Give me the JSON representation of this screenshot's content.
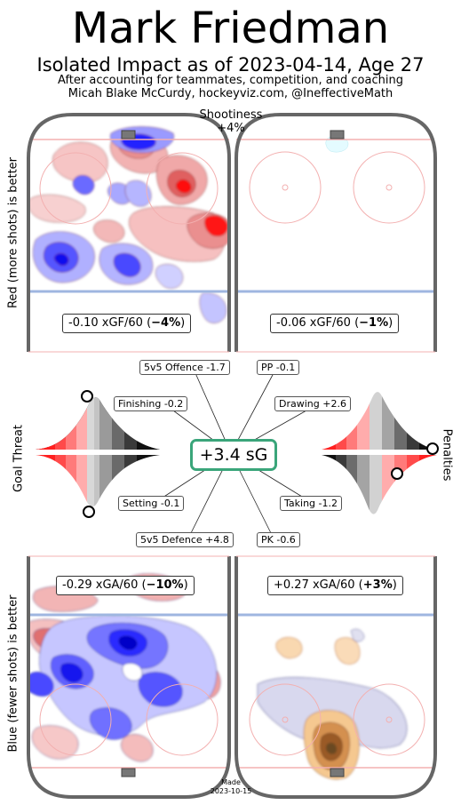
{
  "header": {
    "title": "Mark Friedman",
    "subtitle": "Isolated Impact as of 2023-04-14, Age 27",
    "note_line1": "After accounting for teammates, competition, and coaching",
    "note_line2": "Micah Blake McCurdy, hockeyviz.com, @IneffectiveMath"
  },
  "shootiness": {
    "label": "Shootiness",
    "value": "+4%"
  },
  "side_labels": {
    "offence": "Red (more shots) is better",
    "defence": "Blue (fewer shots) is better",
    "goal_threat": "Goal Threat",
    "penalties": "Penalties"
  },
  "rink_boxes": {
    "off_5v5": {
      "prefix": "-0.10 xGF/60 (",
      "pct": "−4%",
      "suffix": ")"
    },
    "off_pp": {
      "prefix": "-0.06 xGF/60 (",
      "pct": "−1%",
      "suffix": ")"
    },
    "def_5v5": {
      "prefix": "-0.29 xGA/60 (",
      "pct": "−10%",
      "suffix": ")"
    },
    "def_pk": {
      "prefix": "+0.27 xGA/60 (",
      "pct": "+3%",
      "suffix": ")"
    }
  },
  "components": {
    "offence_5v5": "5v5 Offence -1.7",
    "pp": "PP -0.1",
    "finishing": "Finishing -0.2",
    "drawing": "Drawing +2.6",
    "setting": "Setting -0.1",
    "taking": "Taking -1.2",
    "defence_5v5": "5v5 Defence +4.8",
    "pk": "PK -0.6",
    "total": "+3.4 sG"
  },
  "footer": {
    "made": "Made",
    "date": "2023-10-15"
  },
  "colors": {
    "good_red": "#ff0000",
    "good_blue": "#0000ff",
    "pk_orange": "#d98c3a",
    "total_border": "#3aa57a"
  },
  "chart_data": {
    "type": "heatmap",
    "player": "Mark Friedman",
    "as_of": "2023-04-14",
    "age": 27,
    "shootiness_pct": 4,
    "panels": [
      {
        "name": "5v5 offence",
        "rate_label": "xGF/60",
        "value": -0.1,
        "pct": -4
      },
      {
        "name": "PP offence",
        "rate_label": "xGF/60",
        "value": -0.06,
        "pct": -1
      },
      {
        "name": "5v5 defence",
        "rate_label": "xGA/60",
        "value": -0.29,
        "pct": -10
      },
      {
        "name": "PK defence",
        "rate_label": "xGA/60",
        "value": 0.27,
        "pct": 3
      }
    ],
    "components_sG": [
      {
        "name": "5v5 Offence",
        "value": -1.7
      },
      {
        "name": "PP",
        "value": -0.1
      },
      {
        "name": "Finishing",
        "value": -0.2
      },
      {
        "name": "Drawing",
        "value": 2.6
      },
      {
        "name": "Setting",
        "value": -0.1
      },
      {
        "name": "Taking",
        "value": -1.2
      },
      {
        "name": "5v5 Defence",
        "value": 4.8
      },
      {
        "name": "PK",
        "value": -0.6
      }
    ],
    "total_sG": 3.4
  }
}
